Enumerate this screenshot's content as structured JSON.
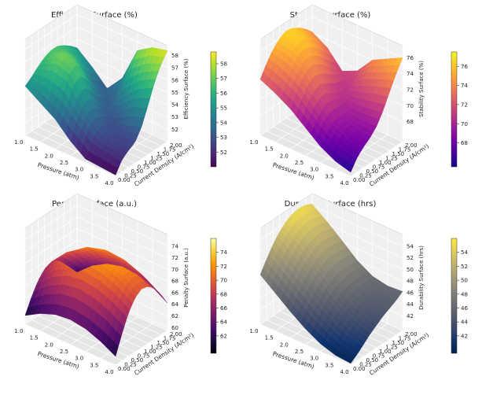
{
  "chart_data": [
    {
      "type": "surface3d",
      "title": "Efficiency Surface (%)",
      "xlabel": "Pressure (atm)",
      "ylabel": "Current Density (A/cm²)",
      "zlabel": "Efficiency Surface (%)",
      "xticks": [
        "1.0",
        "1.5",
        "2.0",
        "2.5",
        "3.0",
        "3.5",
        "4.0"
      ],
      "yticks": [
        "0.00",
        "0.25",
        "0.50",
        "0.75",
        "1.00",
        "1.25",
        "1.50",
        "1.75",
        "2.00"
      ],
      "xlim": [
        1.0,
        4.0
      ],
      "ylim": [
        0.0,
        2.0
      ],
      "zticks": [
        "52",
        "53",
        "54",
        "55",
        "56",
        "57",
        "58"
      ],
      "zlim": [
        51.0,
        58.8
      ],
      "colorbar_ticks": [
        "52",
        "53",
        "54",
        "55",
        "56",
        "57",
        "58"
      ],
      "colormap": "viridis",
      "grid_z": [
        [
          55.0,
          55.4,
          55.9,
          56.3,
          56.5,
          56.5,
          56.2,
          55.8,
          55.3
        ],
        [
          54.2,
          55.3,
          56.5,
          57.2,
          56.9,
          56.4,
          55.6,
          54.9,
          54.3
        ],
        [
          53.4,
          54.8,
          56.2,
          56.8,
          56.3,
          55.1,
          54.0,
          53.4,
          53.1
        ],
        [
          52.2,
          53.6,
          54.5,
          54.6,
          53.8,
          53.2,
          53.1,
          53.6,
          54.5
        ],
        [
          51.3,
          52.5,
          53.2,
          53.0,
          52.8,
          53.4,
          54.6,
          56.0,
          57.3
        ],
        [
          51.2,
          52.2,
          52.6,
          52.6,
          53.2,
          54.5,
          55.8,
          57.0,
          58.1
        ],
        [
          51.1,
          52.0,
          52.4,
          52.7,
          53.6,
          55.0,
          56.5,
          57.6,
          58.4
        ]
      ]
    },
    {
      "type": "surface3d",
      "title": "Stability Surface (%)",
      "xlabel": "Pressure (atm)",
      "ylabel": "Current Density (A/cm²)",
      "zlabel": "Stability Surface (%)",
      "xticks": [
        "1.0",
        "1.5",
        "2.0",
        "2.5",
        "3.0",
        "3.5",
        "4.0"
      ],
      "yticks": [
        "0.00",
        "0.25",
        "0.50",
        "0.75",
        "1.00",
        "1.25",
        "1.50",
        "1.75",
        "2.00"
      ],
      "xlim": [
        1.0,
        4.0
      ],
      "ylim": [
        0.0,
        2.0
      ],
      "zticks": [
        "68",
        "70",
        "72",
        "74",
        "76"
      ],
      "zlim": [
        65.5,
        77.5
      ],
      "colorbar_ticks": [
        "68",
        "70",
        "72",
        "74",
        "76"
      ],
      "colormap": "plasma",
      "grid_z": [
        [
          72.5,
          74.0,
          75.2,
          76.0,
          76.4,
          76.2,
          75.7,
          75.0,
          74.1
        ],
        [
          71.6,
          73.3,
          74.8,
          75.8,
          76.1,
          75.8,
          75.0,
          74.0,
          73.0
        ],
        [
          70.5,
          72.2,
          73.6,
          74.2,
          74.0,
          73.4,
          72.5,
          71.6,
          70.9
        ],
        [
          69.0,
          70.5,
          71.5,
          71.7,
          71.2,
          70.7,
          70.6,
          71.0,
          71.8
        ],
        [
          67.5,
          68.8,
          69.6,
          69.7,
          69.8,
          70.4,
          71.5,
          72.8,
          74.0
        ],
        [
          66.5,
          67.8,
          68.5,
          68.9,
          69.5,
          70.7,
          72.2,
          73.7,
          75.0
        ],
        [
          66.0,
          67.3,
          68.1,
          68.7,
          69.6,
          71.0,
          72.8,
          74.5,
          76.0
        ]
      ]
    },
    {
      "type": "surface3d",
      "title": "Penalty Surface (a.u.)",
      "xlabel": "Pressure (atm)",
      "ylabel": "Current Density (A/cm²)",
      "zlabel": "Penalty Surface (a.u.)",
      "xticks": [
        "1.0",
        "1.5",
        "2.0",
        "2.5",
        "3.0",
        "3.5",
        "4.0"
      ],
      "yticks": [
        "0.00",
        "0.25",
        "0.50",
        "0.75",
        "1.00",
        "1.25",
        "1.50",
        "1.75",
        "2.00"
      ],
      "xlim": [
        1.0,
        4.0
      ],
      "ylim": [
        0.0,
        2.0
      ],
      "zticks": [
        "60",
        "62",
        "64",
        "66",
        "68",
        "70",
        "72",
        "74"
      ],
      "zlim": [
        59.5,
        76.0
      ],
      "colorbar_ticks": [
        "62",
        "64",
        "66",
        "68",
        "70",
        "72",
        "74"
      ],
      "colormap": "inferno",
      "grid_z": [
        [
          61.0,
          63.5,
          65.5,
          66.8,
          67.2,
          66.8,
          65.5,
          64.0,
          62.5
        ],
        [
          62.5,
          65.5,
          68.0,
          69.5,
          70.0,
          69.5,
          68.2,
          66.5,
          64.8
        ],
        [
          63.5,
          66.8,
          69.5,
          71.2,
          71.8,
          71.4,
          70.0,
          68.2,
          66.3
        ],
        [
          63.8,
          67.2,
          70.0,
          71.8,
          72.5,
          72.2,
          71.0,
          69.2,
          67.0
        ],
        [
          63.4,
          66.8,
          69.6,
          71.5,
          72.3,
          72.0,
          70.8,
          69.0,
          66.8
        ],
        [
          62.4,
          65.8,
          68.6,
          70.5,
          71.3,
          71.0,
          69.8,
          68.0,
          65.8
        ],
        [
          61.0,
          64.2,
          67.0,
          68.8,
          69.6,
          69.3,
          68.2,
          66.4,
          64.2
        ]
      ]
    },
    {
      "type": "surface3d",
      "title": "Durability Surface (hrs)",
      "xlabel": "Pressure (atm)",
      "ylabel": "Current Density (A/cm²)",
      "zlabel": "Durability Surface (hrs)",
      "xticks": [
        "1.0",
        "1.5",
        "2.0",
        "2.5",
        "3.0",
        "3.5",
        "4.0"
      ],
      "yticks": [
        "0.00",
        "0.25",
        "0.50",
        "0.75",
        "1.00",
        "1.25",
        "1.50",
        "1.75",
        "2.00"
      ],
      "xlim": [
        1.0,
        4.0
      ],
      "ylim": [
        0.0,
        2.0
      ],
      "zticks": [
        "42",
        "44",
        "46",
        "48",
        "50",
        "52",
        "54"
      ],
      "zlim": [
        39.5,
        56.0
      ],
      "colorbar_ticks": [
        "42",
        "44",
        "46",
        "48",
        "50",
        "52",
        "54"
      ],
      "colormap": "cividis",
      "grid_z": [
        [
          48.0,
          50.0,
          51.8,
          53.2,
          54.2,
          54.8,
          55.0,
          54.8,
          54.2
        ],
        [
          46.0,
          48.0,
          49.8,
          51.2,
          52.2,
          52.8,
          53.0,
          52.8,
          52.3
        ],
        [
          44.0,
          46.0,
          47.8,
          49.0,
          50.0,
          50.6,
          50.8,
          50.6,
          50.2
        ],
        [
          42.2,
          44.0,
          45.6,
          46.8,
          47.6,
          48.1,
          48.3,
          48.2,
          48.0
        ],
        [
          40.8,
          42.4,
          43.8,
          44.8,
          45.6,
          46.0,
          46.3,
          46.4,
          46.5
        ],
        [
          40.0,
          41.2,
          42.4,
          43.4,
          44.2,
          44.8,
          45.2,
          45.6,
          46.0
        ],
        [
          39.8,
          40.6,
          41.6,
          42.6,
          43.4,
          44.2,
          44.8,
          45.4,
          46.2
        ]
      ]
    }
  ]
}
